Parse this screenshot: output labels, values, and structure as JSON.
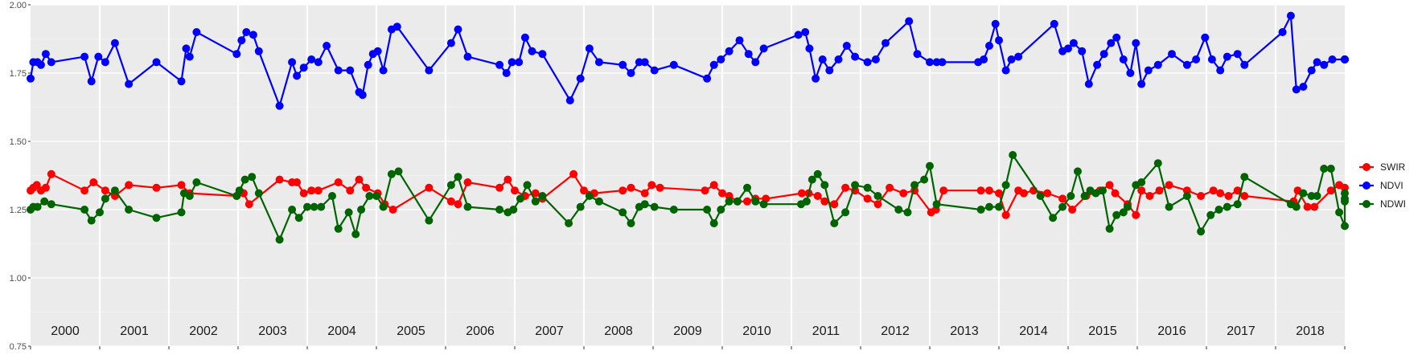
{
  "chart_data": {
    "type": "line",
    "title": "",
    "xlabel": "",
    "ylabel": "",
    "xlim": [
      2000.0,
      2019.0
    ],
    "ylim": [
      0.75,
      2.0
    ],
    "y_ticks": [
      "0.75",
      "1.00",
      "1.25",
      "1.50",
      "1.75",
      "2.00"
    ],
    "y_tick_values": [
      0.75,
      1.0,
      1.25,
      1.5,
      1.75,
      2.0
    ],
    "x_year_labels": [
      "2000",
      "2001",
      "2002",
      "2003",
      "2004",
      "2005",
      "2006",
      "2007",
      "2008",
      "2009",
      "2010",
      "2011",
      "2012",
      "2013",
      "2014",
      "2015",
      "2016",
      "2017",
      "2018"
    ],
    "grid": true,
    "legend_position": "right",
    "series": [
      {
        "name": "SWIR",
        "color": "#ff0000",
        "x": [
          2000.0,
          2000.04,
          2000.09,
          2000.15,
          2000.22,
          2000.3,
          2000.78,
          2000.91,
          2001.08,
          2001.22,
          2001.42,
          2001.82,
          2002.18,
          2002.3,
          2002.98,
          2003.08,
          2003.16,
          2003.6,
          2003.78,
          2003.85,
          2003.95,
          2004.06,
          2004.16,
          2004.45,
          2004.62,
          2004.75,
          2004.85,
          2005.02,
          2005.12,
          2005.24,
          2005.76,
          2006.08,
          2006.18,
          2006.32,
          2006.78,
          2006.9,
          2007.0,
          2007.15,
          2007.3,
          2007.4,
          2007.85,
          2008.0,
          2008.15,
          2008.56,
          2008.68,
          2008.88,
          2008.98,
          2009.1,
          2009.75,
          2009.88,
          2010.0,
          2010.1,
          2010.22,
          2010.36,
          2010.48,
          2010.63,
          2011.15,
          2011.25,
          2011.38,
          2011.48,
          2011.62,
          2011.78,
          2011.92,
          2012.1,
          2012.25,
          2012.42,
          2012.62,
          2012.78,
          2013.02,
          2013.09,
          2013.2,
          2013.74,
          2013.86,
          2014.0,
          2014.1,
          2014.28,
          2014.36,
          2014.5,
          2014.7,
          2014.92,
          2015.06,
          2015.26,
          2015.46,
          2015.6,
          2015.68,
          2015.86,
          2015.98,
          2016.06,
          2016.18,
          2016.32,
          2016.46,
          2016.72,
          2016.92,
          2017.1,
          2017.2,
          2017.32,
          2017.45,
          2017.55,
          2018.26,
          2018.32,
          2018.46,
          2018.56,
          2018.8,
          2018.92,
          2019.0
        ],
        "values": [
          1.32,
          1.33,
          1.34,
          1.32,
          1.33,
          1.38,
          1.32,
          1.35,
          1.32,
          1.3,
          1.34,
          1.33,
          1.34,
          1.31,
          1.3,
          1.31,
          1.27,
          1.36,
          1.35,
          1.35,
          1.31,
          1.32,
          1.32,
          1.35,
          1.32,
          1.36,
          1.33,
          1.31,
          1.27,
          1.25,
          1.33,
          1.28,
          1.27,
          1.35,
          1.33,
          1.36,
          1.32,
          1.3,
          1.31,
          1.29,
          1.38,
          1.32,
          1.31,
          1.32,
          1.33,
          1.31,
          1.34,
          1.33,
          1.32,
          1.34,
          1.31,
          1.3,
          1.28,
          1.28,
          1.29,
          1.29,
          1.31,
          1.31,
          1.3,
          1.28,
          1.27,
          1.33,
          1.32,
          1.29,
          1.27,
          1.33,
          1.31,
          1.32,
          1.24,
          1.25,
          1.32,
          1.32,
          1.32,
          1.31,
          1.23,
          1.32,
          1.31,
          1.32,
          1.31,
          1.29,
          1.25,
          1.3,
          1.32,
          1.34,
          1.31,
          1.27,
          1.23,
          1.32,
          1.3,
          1.32,
          1.34,
          1.32,
          1.3,
          1.32,
          1.31,
          1.3,
          1.32,
          1.3,
          1.28,
          1.32,
          1.26,
          1.26,
          1.32,
          1.34,
          1.33
        ]
      },
      {
        "name": "NDVI",
        "color": "#0000ff",
        "x": [
          2000.0,
          2000.04,
          2000.1,
          2000.15,
          2000.22,
          2000.3,
          2000.78,
          2000.88,
          2000.98,
          2001.08,
          2001.22,
          2001.42,
          2001.82,
          2002.18,
          2002.25,
          2002.3,
          2002.4,
          2002.98,
          2003.05,
          2003.12,
          2003.22,
          2003.3,
          2003.6,
          2003.78,
          2003.85,
          2003.95,
          2004.06,
          2004.16,
          2004.28,
          2004.45,
          2004.62,
          2004.75,
          2004.8,
          2004.88,
          2004.95,
          2005.02,
          2005.1,
          2005.22,
          2005.3,
          2005.76,
          2006.08,
          2006.18,
          2006.32,
          2006.78,
          2006.88,
          2006.96,
          2007.06,
          2007.15,
          2007.25,
          2007.4,
          2007.8,
          2007.95,
          2008.08,
          2008.22,
          2008.56,
          2008.68,
          2008.8,
          2008.88,
          2009.02,
          2009.3,
          2009.78,
          2009.88,
          2009.98,
          2010.1,
          2010.25,
          2010.38,
          2010.48,
          2010.6,
          2011.1,
          2011.2,
          2011.26,
          2011.35,
          2011.45,
          2011.55,
          2011.68,
          2011.8,
          2011.92,
          2012.1,
          2012.22,
          2012.36,
          2012.7,
          2012.82,
          2013.0,
          2013.1,
          2013.18,
          2013.7,
          2013.78,
          2013.86,
          2013.95,
          2014.0,
          2014.1,
          2014.18,
          2014.28,
          2014.8,
          2014.92,
          2015.0,
          2015.08,
          2015.2,
          2015.3,
          2015.42,
          2015.52,
          2015.62,
          2015.7,
          2015.8,
          2015.9,
          2015.98,
          2016.06,
          2016.16,
          2016.3,
          2016.5,
          2016.72,
          2016.85,
          2016.98,
          2017.08,
          2017.2,
          2017.3,
          2017.45,
          2017.55,
          2018.1,
          2018.22,
          2018.3,
          2018.4,
          2018.52,
          2018.6,
          2018.7,
          2018.82,
          2019.0,
          2019.06,
          2019.14,
          2019.24,
          2019.3
        ],
        "values": [
          1.73,
          1.79,
          1.79,
          1.78,
          1.82,
          1.79,
          1.81,
          1.72,
          1.81,
          1.79,
          1.86,
          1.71,
          1.79,
          1.72,
          1.84,
          1.81,
          1.9,
          1.82,
          1.87,
          1.9,
          1.89,
          1.83,
          1.63,
          1.79,
          1.74,
          1.77,
          1.8,
          1.79,
          1.85,
          1.76,
          1.76,
          1.68,
          1.67,
          1.78,
          1.82,
          1.83,
          1.76,
          1.91,
          1.92,
          1.76,
          1.86,
          1.91,
          1.81,
          1.78,
          1.75,
          1.79,
          1.79,
          1.88,
          1.83,
          1.82,
          1.65,
          1.73,
          1.84,
          1.79,
          1.78,
          1.75,
          1.79,
          1.79,
          1.76,
          1.78,
          1.73,
          1.78,
          1.8,
          1.83,
          1.87,
          1.82,
          1.79,
          1.84,
          1.89,
          1.9,
          1.84,
          1.73,
          1.8,
          1.76,
          1.8,
          1.85,
          1.81,
          1.79,
          1.8,
          1.86,
          1.94,
          1.82,
          1.79,
          1.79,
          1.79,
          1.79,
          1.8,
          1.85,
          1.93,
          1.87,
          1.76,
          1.8,
          1.81,
          1.93,
          1.83,
          1.84,
          1.86,
          1.83,
          1.71,
          1.78,
          1.82,
          1.86,
          1.88,
          1.8,
          1.75,
          1.86,
          1.71,
          1.76,
          1.78,
          1.82,
          1.78,
          1.8,
          1.88,
          1.8,
          1.76,
          1.81,
          1.82,
          1.78,
          1.9,
          1.96,
          1.69,
          1.7,
          1.76,
          1.79,
          1.78,
          1.8,
          1.8,
          1.8,
          1.8,
          1.8,
          1.8
        ]
      },
      {
        "name": "NDWI",
        "color": "#006400",
        "x": [
          2000.0,
          2000.04,
          2000.1,
          2000.2,
          2000.3,
          2000.78,
          2000.88,
          2001.0,
          2001.08,
          2001.22,
          2001.42,
          2001.82,
          2002.18,
          2002.22,
          2002.3,
          2002.4,
          2002.98,
          2003.02,
          2003.1,
          2003.2,
          2003.3,
          2003.6,
          2003.78,
          2003.88,
          2004.0,
          2004.1,
          2004.2,
          2004.36,
          2004.45,
          2004.6,
          2004.7,
          2004.78,
          2004.9,
          2005.0,
          2005.1,
          2005.22,
          2005.32,
          2005.76,
          2006.08,
          2006.18,
          2006.32,
          2006.78,
          2006.9,
          2006.98,
          2007.08,
          2007.18,
          2007.3,
          2007.4,
          2007.78,
          2007.95,
          2008.08,
          2008.22,
          2008.56,
          2008.68,
          2008.8,
          2008.88,
          2009.02,
          2009.3,
          2009.78,
          2009.88,
          2009.98,
          2010.1,
          2010.22,
          2010.36,
          2010.48,
          2010.6,
          2011.14,
          2011.22,
          2011.3,
          2011.38,
          2011.48,
          2011.62,
          2011.78,
          2011.92,
          2012.1,
          2012.25,
          2012.55,
          2012.68,
          2012.78,
          2012.92,
          2013.0,
          2013.1,
          2013.74,
          2013.86,
          2014.0,
          2014.1,
          2014.2,
          2014.6,
          2014.78,
          2014.92,
          2015.04,
          2015.14,
          2015.24,
          2015.32,
          2015.4,
          2015.5,
          2015.6,
          2015.7,
          2015.8,
          2015.86,
          2015.98,
          2016.06,
          2016.3,
          2016.46,
          2016.72,
          2016.92,
          2017.06,
          2017.18,
          2017.3,
          2017.45,
          2017.55,
          2018.22,
          2018.3,
          2018.4,
          2018.52,
          2018.6,
          2018.7,
          2018.8,
          2018.92,
          2019.0,
          2019.06,
          2019.14,
          2019.22
        ],
        "values": [
          1.25,
          1.26,
          1.26,
          1.28,
          1.27,
          1.25,
          1.21,
          1.24,
          1.29,
          1.32,
          1.25,
          1.22,
          1.24,
          1.31,
          1.3,
          1.35,
          1.3,
          1.32,
          1.36,
          1.37,
          1.31,
          1.14,
          1.25,
          1.22,
          1.26,
          1.26,
          1.26,
          1.3,
          1.18,
          1.24,
          1.16,
          1.25,
          1.3,
          1.3,
          1.26,
          1.38,
          1.39,
          1.21,
          1.34,
          1.37,
          1.26,
          1.25,
          1.24,
          1.25,
          1.29,
          1.34,
          1.28,
          1.3,
          1.2,
          1.26,
          1.3,
          1.28,
          1.24,
          1.2,
          1.26,
          1.27,
          1.26,
          1.25,
          1.25,
          1.2,
          1.25,
          1.28,
          1.28,
          1.33,
          1.28,
          1.27,
          1.27,
          1.28,
          1.36,
          1.38,
          1.34,
          1.2,
          1.24,
          1.34,
          1.33,
          1.3,
          1.25,
          1.24,
          1.34,
          1.36,
          1.41,
          1.27,
          1.25,
          1.26,
          1.26,
          1.34,
          1.45,
          1.3,
          1.22,
          1.26,
          1.3,
          1.39,
          1.3,
          1.32,
          1.31,
          1.32,
          1.18,
          1.23,
          1.24,
          1.26,
          1.34,
          1.35,
          1.42,
          1.26,
          1.3,
          1.17,
          1.23,
          1.25,
          1.26,
          1.27,
          1.37,
          1.27,
          1.26,
          1.31,
          1.3,
          1.3,
          1.4,
          1.4,
          1.24,
          1.19,
          1.28,
          1.29,
          1.31
        ]
      }
    ]
  }
}
